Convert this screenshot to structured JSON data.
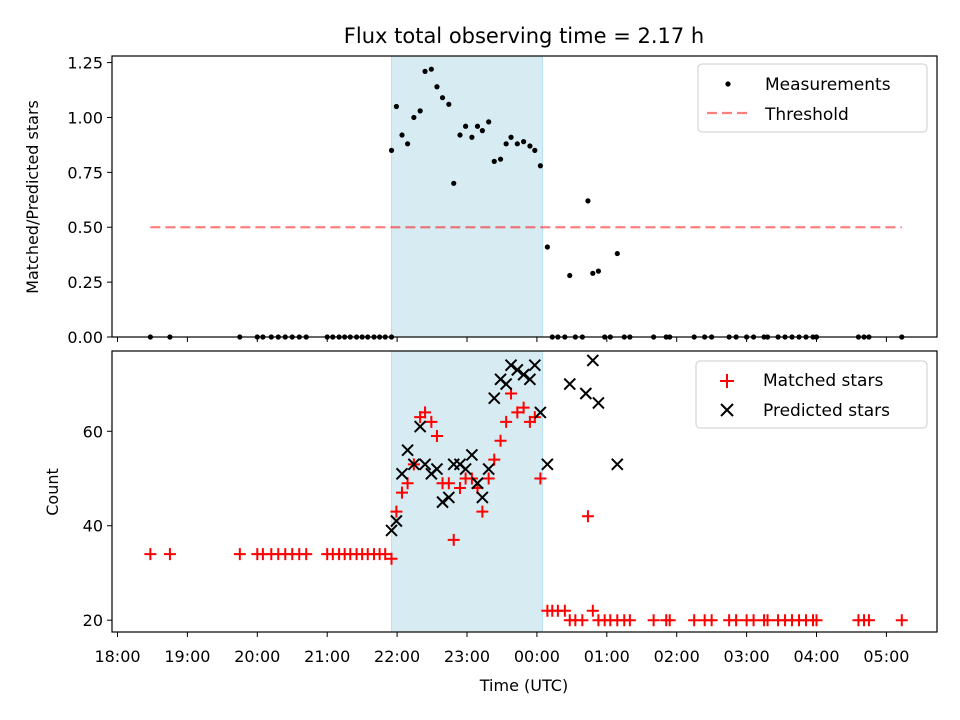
{
  "title": "Flux total observing time = 2.17 h",
  "xlabel": "Time (UTC)",
  "x_ticks": [
    "18:00",
    "19:00",
    "20:00",
    "21:00",
    "22:00",
    "23:00",
    "00:00",
    "01:00",
    "02:00",
    "03:00",
    "04:00",
    "05:00"
  ],
  "colors": {
    "shade": "#add8e6",
    "measurements": "#000000",
    "threshold": "#ff0000",
    "matched": "#ff0000",
    "predicted": "#000000"
  },
  "chart_data": [
    {
      "type": "scatter",
      "ylabel": "Matched/Predicted stars",
      "ylim": [
        0,
        1.28
      ],
      "yticks": [
        "0.00",
        "0.25",
        "0.50",
        "0.75",
        "1.00",
        "1.25"
      ],
      "x_unit": "hours since 18:00 UTC",
      "shaded_interval": [
        3.92,
        6.08
      ],
      "threshold": {
        "value": 0.5,
        "x_range": [
          0.47,
          11.22
        ]
      },
      "legend": {
        "position": "top-right",
        "entries": [
          "Measurements",
          "Threshold"
        ]
      },
      "series": [
        {
          "name": "Measurements",
          "points": [
            [
              0.47,
              0
            ],
            [
              0.75,
              0
            ],
            [
              1.75,
              0
            ],
            [
              2.0,
              0
            ],
            [
              2.08,
              0
            ],
            [
              2.2,
              0
            ],
            [
              2.3,
              0
            ],
            [
              2.4,
              0
            ],
            [
              2.5,
              0
            ],
            [
              2.6,
              0
            ],
            [
              2.7,
              0
            ],
            [
              3.0,
              0
            ],
            [
              3.08,
              0
            ],
            [
              3.17,
              0
            ],
            [
              3.25,
              0
            ],
            [
              3.33,
              0
            ],
            [
              3.42,
              0
            ],
            [
              3.5,
              0
            ],
            [
              3.58,
              0
            ],
            [
              3.67,
              0
            ],
            [
              3.75,
              0
            ],
            [
              3.83,
              0
            ],
            [
              3.92,
              0
            ],
            [
              3.92,
              0.85
            ],
            [
              3.99,
              1.05
            ],
            [
              4.07,
              0.92
            ],
            [
              4.15,
              0.88
            ],
            [
              4.24,
              1.0
            ],
            [
              4.33,
              1.03
            ],
            [
              4.4,
              1.21
            ],
            [
              4.49,
              1.22
            ],
            [
              4.57,
              1.14
            ],
            [
              4.65,
              1.09
            ],
            [
              4.74,
              1.06
            ],
            [
              4.81,
              0.7
            ],
            [
              4.9,
              0.92
            ],
            [
              4.98,
              0.96
            ],
            [
              5.07,
              0.91
            ],
            [
              5.15,
              0.96
            ],
            [
              5.22,
              0.94
            ],
            [
              5.31,
              0.98
            ],
            [
              5.39,
              0.8
            ],
            [
              5.48,
              0.81
            ],
            [
              5.56,
              0.88
            ],
            [
              5.63,
              0.91
            ],
            [
              5.72,
              0.88
            ],
            [
              5.81,
              0.89
            ],
            [
              5.9,
              0.87
            ],
            [
              5.97,
              0.85
            ],
            [
              6.05,
              0.78
            ],
            [
              6.15,
              0.41
            ],
            [
              6.22,
              0
            ],
            [
              6.3,
              0
            ],
            [
              6.4,
              0
            ],
            [
              6.47,
              0.28
            ],
            [
              6.55,
              0
            ],
            [
              6.65,
              0
            ],
            [
              6.73,
              0.62
            ],
            [
              6.8,
              0.29
            ],
            [
              6.88,
              0.3
            ],
            [
              6.97,
              0
            ],
            [
              7.05,
              0
            ],
            [
              7.15,
              0.38
            ],
            [
              7.25,
              0
            ],
            [
              7.33,
              0
            ],
            [
              7.67,
              0
            ],
            [
              7.85,
              0
            ],
            [
              7.9,
              0
            ],
            [
              8.25,
              0
            ],
            [
              8.4,
              0
            ],
            [
              8.5,
              0
            ],
            [
              8.75,
              0
            ],
            [
              8.85,
              0
            ],
            [
              9.0,
              0
            ],
            [
              9.1,
              0
            ],
            [
              9.25,
              0
            ],
            [
              9.3,
              0
            ],
            [
              9.45,
              0
            ],
            [
              9.55,
              0
            ],
            [
              9.65,
              0
            ],
            [
              9.75,
              0
            ],
            [
              9.85,
              0
            ],
            [
              9.95,
              0
            ],
            [
              10.0,
              0
            ],
            [
              10.6,
              0
            ],
            [
              10.68,
              0
            ],
            [
              10.75,
              0
            ],
            [
              11.22,
              0
            ]
          ]
        }
      ]
    },
    {
      "type": "scatter",
      "ylabel": "Count",
      "ylim": [
        17.5,
        77
      ],
      "yticks": [
        "20",
        "40",
        "60"
      ],
      "x_unit": "hours since 18:00 UTC",
      "shaded_interval": [
        3.92,
        6.08
      ],
      "legend": {
        "position": "top-right",
        "entries": [
          "Matched stars",
          "Predicted stars"
        ]
      },
      "series": [
        {
          "name": "Matched stars",
          "points": [
            [
              0.47,
              34
            ],
            [
              0.75,
              34
            ],
            [
              1.75,
              34
            ],
            [
              2.0,
              34
            ],
            [
              2.08,
              34
            ],
            [
              2.2,
              34
            ],
            [
              2.3,
              34
            ],
            [
              2.4,
              34
            ],
            [
              2.5,
              34
            ],
            [
              2.6,
              34
            ],
            [
              2.7,
              34
            ],
            [
              3.0,
              34
            ],
            [
              3.08,
              34
            ],
            [
              3.17,
              34
            ],
            [
              3.25,
              34
            ],
            [
              3.33,
              34
            ],
            [
              3.42,
              34
            ],
            [
              3.5,
              34
            ],
            [
              3.58,
              34
            ],
            [
              3.67,
              34
            ],
            [
              3.75,
              34
            ],
            [
              3.83,
              34
            ],
            [
              3.92,
              33
            ],
            [
              3.99,
              43
            ],
            [
              4.07,
              47
            ],
            [
              4.15,
              49
            ],
            [
              4.24,
              53
            ],
            [
              4.33,
              63
            ],
            [
              4.4,
              64
            ],
            [
              4.49,
              62
            ],
            [
              4.57,
              59
            ],
            [
              4.65,
              49
            ],
            [
              4.74,
              49
            ],
            [
              4.81,
              37
            ],
            [
              4.9,
              48
            ],
            [
              4.98,
              50
            ],
            [
              5.07,
              50
            ],
            [
              5.15,
              48
            ],
            [
              5.22,
              43
            ],
            [
              5.31,
              50
            ],
            [
              5.39,
              54
            ],
            [
              5.48,
              58
            ],
            [
              5.56,
              62
            ],
            [
              5.63,
              68
            ],
            [
              5.72,
              64
            ],
            [
              5.81,
              65
            ],
            [
              5.9,
              62
            ],
            [
              5.97,
              63
            ],
            [
              6.05,
              50
            ],
            [
              6.15,
              22
            ],
            [
              6.22,
              22
            ],
            [
              6.3,
              22
            ],
            [
              6.4,
              22
            ],
            [
              6.47,
              20
            ],
            [
              6.55,
              20
            ],
            [
              6.65,
              20
            ],
            [
              6.73,
              42
            ],
            [
              6.8,
              22
            ],
            [
              6.88,
              20
            ],
            [
              6.97,
              20
            ],
            [
              7.05,
              20
            ],
            [
              7.15,
              20
            ],
            [
              7.25,
              20
            ],
            [
              7.33,
              20
            ],
            [
              7.67,
              20
            ],
            [
              7.85,
              20
            ],
            [
              7.9,
              20
            ],
            [
              8.25,
              20
            ],
            [
              8.4,
              20
            ],
            [
              8.5,
              20
            ],
            [
              8.75,
              20
            ],
            [
              8.85,
              20
            ],
            [
              9.0,
              20
            ],
            [
              9.1,
              20
            ],
            [
              9.25,
              20
            ],
            [
              9.3,
              20
            ],
            [
              9.45,
              20
            ],
            [
              9.55,
              20
            ],
            [
              9.65,
              20
            ],
            [
              9.75,
              20
            ],
            [
              9.85,
              20
            ],
            [
              9.95,
              20
            ],
            [
              10.0,
              20
            ],
            [
              10.6,
              20
            ],
            [
              10.68,
              20
            ],
            [
              10.75,
              20
            ],
            [
              11.22,
              20
            ]
          ]
        },
        {
          "name": "Predicted stars",
          "points": [
            [
              3.92,
              39
            ],
            [
              3.99,
              41
            ],
            [
              4.07,
              51
            ],
            [
              4.15,
              56
            ],
            [
              4.24,
              53
            ],
            [
              4.33,
              61
            ],
            [
              4.4,
              53
            ],
            [
              4.49,
              51
            ],
            [
              4.57,
              52
            ],
            [
              4.65,
              45
            ],
            [
              4.74,
              46
            ],
            [
              4.81,
              53
            ],
            [
              4.9,
              53
            ],
            [
              4.98,
              52
            ],
            [
              5.07,
              55
            ],
            [
              5.15,
              49
            ],
            [
              5.22,
              46
            ],
            [
              5.31,
              52
            ],
            [
              5.39,
              67
            ],
            [
              5.48,
              71
            ],
            [
              5.56,
              70
            ],
            [
              5.63,
              74
            ],
            [
              5.72,
              73
            ],
            [
              5.81,
              72
            ],
            [
              5.9,
              71
            ],
            [
              5.97,
              74
            ],
            [
              6.05,
              64
            ],
            [
              6.15,
              53
            ],
            [
              6.47,
              70
            ],
            [
              6.7,
              68
            ],
            [
              6.8,
              75
            ],
            [
              6.88,
              66
            ],
            [
              7.15,
              53
            ]
          ]
        }
      ]
    }
  ]
}
